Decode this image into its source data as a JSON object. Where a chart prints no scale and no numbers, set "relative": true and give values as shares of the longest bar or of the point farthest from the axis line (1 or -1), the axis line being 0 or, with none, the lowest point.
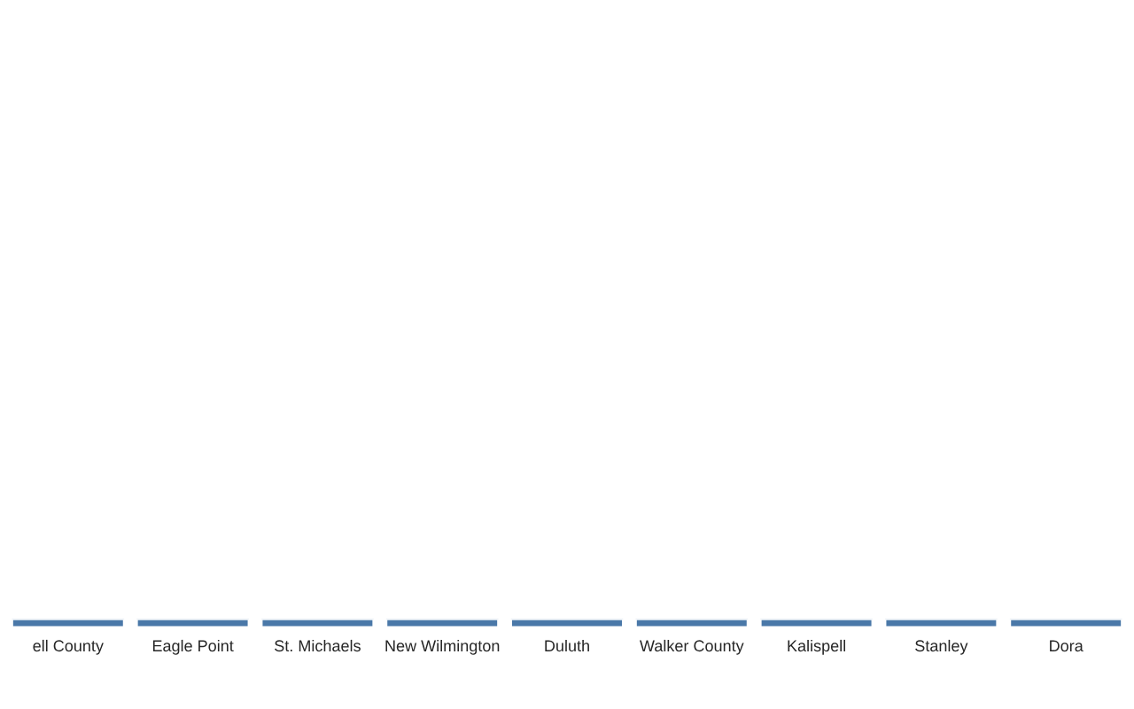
{
  "chart_data": {
    "type": "bar",
    "relative": true,
    "categories": [
      "ell County",
      "Eagle Point",
      "St. Michaels",
      "New Wilmington",
      "Duluth",
      "Walker County",
      "Kalispell",
      "Stanley",
      "Dora"
    ],
    "values": [
      1,
      1,
      1,
      1,
      1,
      1,
      1,
      1,
      1
    ],
    "color": "#4a78a8",
    "grid": false,
    "legend": false
  }
}
